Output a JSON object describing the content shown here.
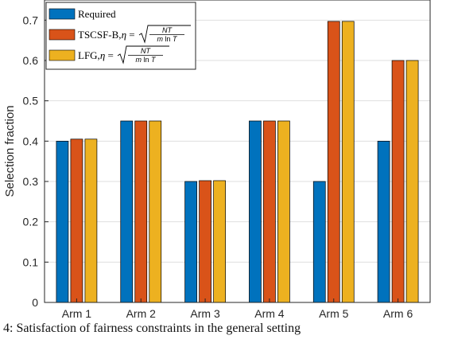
{
  "chart_data": {
    "type": "bar",
    "categories": [
      "Arm 1",
      "Arm 2",
      "Arm 3",
      "Arm 4",
      "Arm 5",
      "Arm 6"
    ],
    "series": [
      {
        "name": "Required",
        "color": "#0072BD",
        "values": [
          0.4,
          0.45,
          0.3,
          0.45,
          0.3,
          0.4
        ]
      },
      {
        "name": "TSCSF-B,η = √(NT / m ln T)",
        "color": "#D95319",
        "values": [
          0.405,
          0.45,
          0.302,
          0.45,
          0.697,
          0.6
        ]
      },
      {
        "name": "LFG,η = √(NT / m ln T)",
        "color": "#EDB120",
        "values": [
          0.405,
          0.45,
          0.302,
          0.45,
          0.697,
          0.6
        ]
      }
    ],
    "ylabel": "Selection fraction",
    "xlabel": "",
    "ylim": [
      0,
      0.75
    ],
    "yticks": [
      "0",
      "0.1",
      "0.2",
      "0.3",
      "0.4",
      "0.5",
      "0.6",
      "0.7"
    ],
    "grid": true,
    "legend": "top-left"
  },
  "caption": "4: Satisfaction of fairness constraints in the general setting"
}
